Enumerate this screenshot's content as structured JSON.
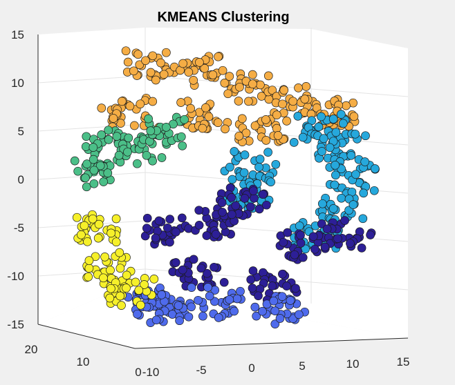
{
  "chart_data": {
    "type": "scatter",
    "title": "KMEANS Clustering",
    "projection": "3d",
    "grid": true,
    "x_ticks": [
      "-10",
      "-5",
      "0",
      "5",
      "10",
      "15"
    ],
    "y_ticks": [
      "0",
      "10",
      "20"
    ],
    "z_ticks": [
      "15",
      "10",
      "5",
      "0",
      "-5",
      "-10",
      "-15"
    ],
    "xlim": [
      -10,
      15
    ],
    "ylim": [
      0,
      20
    ],
    "zlim": [
      -15,
      15
    ],
    "cluster_colors": [
      "#f5ad45",
      "#26a8dc",
      "#2d1f97",
      "#4f6bec",
      "#f6f02a",
      "#4bbf88"
    ],
    "series": [
      {
        "color": "#f5ad45",
        "points": [
          [
            -4,
            10,
            12.8
          ],
          [
            0,
            8,
            12.5
          ],
          [
            4,
            8,
            10.5
          ],
          [
            8,
            7,
            9
          ],
          [
            12,
            8,
            7.5
          ],
          [
            -6,
            10,
            8
          ],
          [
            0,
            9,
            7.5
          ],
          [
            5,
            8,
            6
          ]
        ]
      },
      {
        "color": "#26a8dc",
        "points": [
          [
            10,
            7,
            6
          ],
          [
            12,
            7,
            4
          ],
          [
            13,
            7,
            1
          ],
          [
            12,
            7,
            -2
          ],
          [
            10,
            7,
            -5
          ],
          [
            5,
            10,
            2
          ],
          [
            5,
            10,
            -1
          ]
        ]
      },
      {
        "color": "#2d1f97",
        "points": [
          [
            -1,
            14,
            -5
          ],
          [
            3,
            12,
            -4
          ],
          [
            5,
            12,
            -2
          ],
          [
            8,
            6,
            -6
          ],
          [
            12,
            6,
            -5
          ],
          [
            6,
            7,
            -10
          ],
          [
            0,
            10,
            -9
          ]
        ]
      },
      {
        "color": "#4f6bec",
        "points": [
          [
            2,
            10,
            -12
          ],
          [
            7,
            8,
            -12.5
          ],
          [
            -3,
            12,
            -12
          ],
          [
            -1,
            14,
            -13
          ]
        ]
      },
      {
        "color": "#f6f02a",
        "points": [
          [
            -9,
            10,
            -4
          ],
          [
            -8,
            10,
            -8
          ],
          [
            -6,
            10,
            -10.5
          ]
        ]
      },
      {
        "color": "#4bbf88",
        "points": [
          [
            -8,
            10,
            5
          ],
          [
            -9,
            10,
            2
          ],
          [
            -5,
            10,
            4
          ],
          [
            -3,
            10,
            6
          ]
        ]
      }
    ]
  }
}
